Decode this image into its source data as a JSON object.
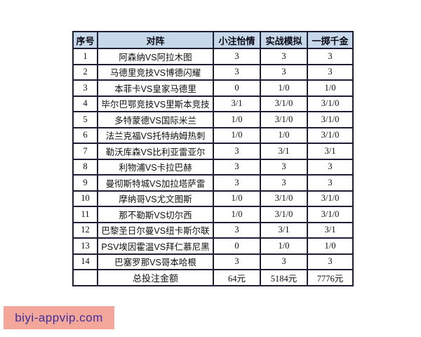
{
  "colors": {
    "header_bg": "#c6d8e9",
    "border_color": "#1d1e36",
    "watermark_bg": "#f3a79a",
    "watermark_text": "#3e2f9c",
    "text_color": "#101010"
  },
  "watermark": {
    "text": "biyi-appvip.com"
  },
  "chart_data": {
    "type": "table",
    "columns": [
      "序号",
      "对阵",
      "小注怡情",
      "实战模拟",
      "一掷千金"
    ],
    "rows": [
      [
        "1",
        "阿森纳VS阿拉木图",
        "3",
        "3",
        "3"
      ],
      [
        "2",
        "马德里竞技VS博德闪耀",
        "3",
        "3",
        "3"
      ],
      [
        "3",
        "本菲卡VS皇家马德里",
        "0",
        "1/0",
        "1/0"
      ],
      [
        "4",
        "毕尔巴鄂竞技VS里斯本竞技",
        "3/1",
        "3/1/0",
        "3/1/0"
      ],
      [
        "5",
        "多特蒙德VS国际米兰",
        "1/0",
        "3/1/0",
        "3/1/0"
      ],
      [
        "6",
        "法兰克福VS托特纳姆热刺",
        "1/0",
        "1/0",
        "3/1/0"
      ],
      [
        "7",
        "勒沃库森VS比利亚雷亚尔",
        "3",
        "3/1",
        "3/1"
      ],
      [
        "8",
        "利物浦VS卡拉巴赫",
        "3",
        "3",
        "3"
      ],
      [
        "9",
        "曼彻斯特城VS加拉塔萨雷",
        "3",
        "3",
        "3"
      ],
      [
        "10",
        "摩纳哥VS尤文图斯",
        "1/0",
        "3/1/0",
        "3/1/0"
      ],
      [
        "11",
        "那不勒斯VS切尔西",
        "1/0",
        "3/1/0",
        "3/1/0"
      ],
      [
        "12",
        "巴黎圣日尔曼VS纽卡斯尔联",
        "3",
        "3/1",
        "3/1"
      ],
      [
        "13",
        "PSV埃因霍温VS拜仁慕尼黑",
        "0",
        "1/0",
        "1/0"
      ],
      [
        "14",
        "巴塞罗那VS哥本哈根",
        "3",
        "3",
        "3"
      ]
    ],
    "footer_row": [
      "",
      "总投注金额",
      "64元",
      "5184元",
      "7776元"
    ]
  }
}
